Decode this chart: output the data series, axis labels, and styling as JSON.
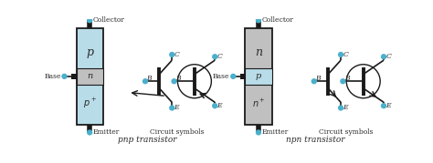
{
  "bg_color": "#ffffff",
  "light_blue": "#b8dce8",
  "light_gray": "#c0c0c0",
  "dark": "#1a1a1a",
  "dot_color": "#4ab0cc",
  "text_color": "#2a2a2a",
  "pnp_label": "pnp transistor",
  "npn_label": "npn transistor",
  "circuit_symbols_label": "Circuit symbols",
  "figw": 4.74,
  "figh": 1.79,
  "dpi": 100
}
